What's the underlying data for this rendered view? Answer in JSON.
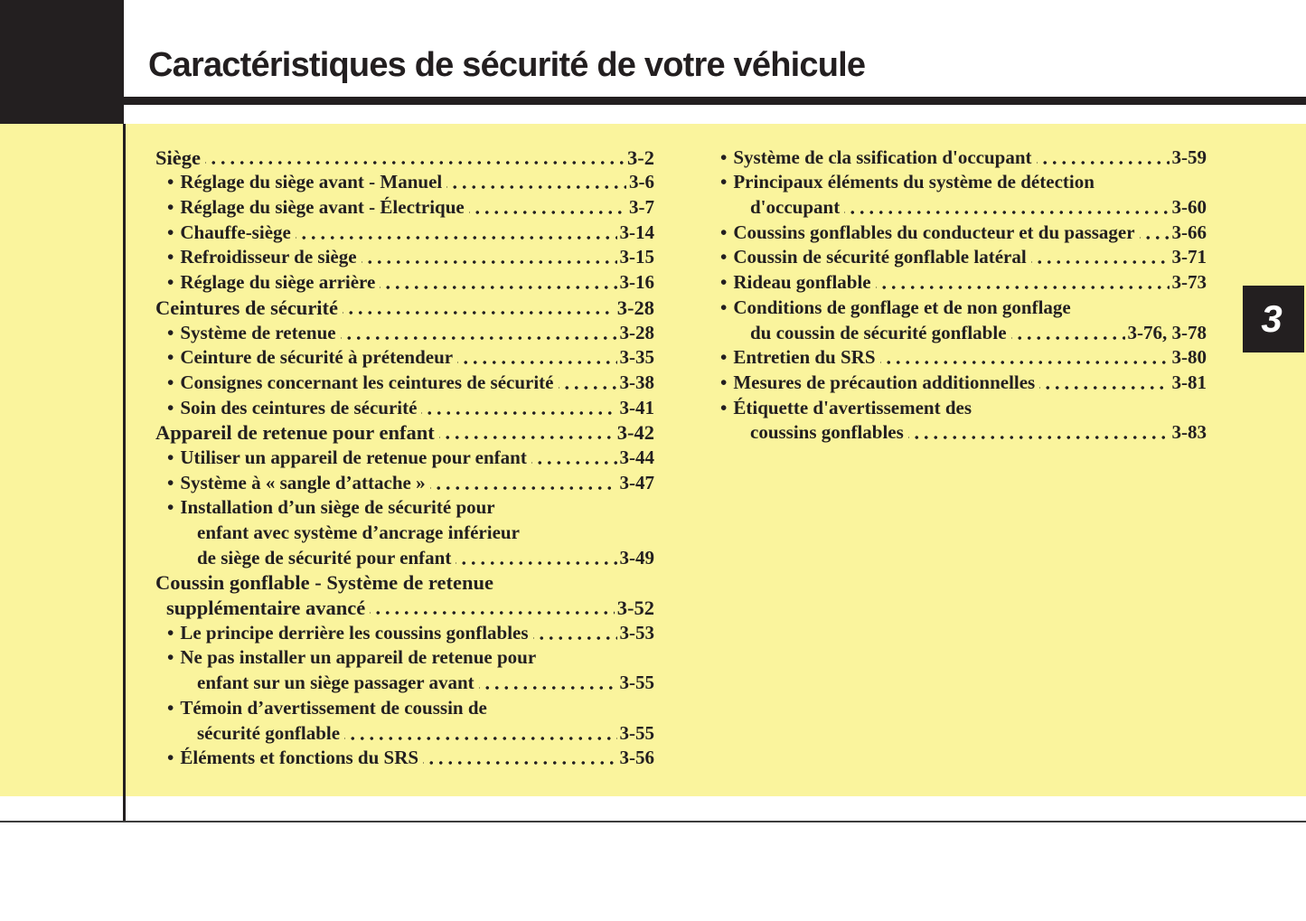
{
  "page": {
    "title": "Caractéristiques de sécurité de votre véhicule",
    "chapter_tab": "3"
  },
  "colors": {
    "highlight_yellow": "#faf49d",
    "print_black": "#231f20",
    "rule_gray": "#3d3d3d",
    "tab_text_white": "#ffffff"
  },
  "toc": {
    "bullet_glyph": "•",
    "left": [
      {
        "t": "Siège",
        "p": "3-2",
        "s": "h"
      },
      {
        "t": "Réglage du siège avant - Manuel",
        "p": "3-6",
        "s": "b"
      },
      {
        "t": "Réglage du siège avant - Électrique",
        "p": "3-7",
        "s": "b"
      },
      {
        "t": "Chauffe-siège",
        "p": "3-14",
        "s": "b"
      },
      {
        "t": "Refroidisseur de siège",
        "p": "3-15",
        "s": "b"
      },
      {
        "t": "Réglage du siège arrière",
        "p": "3-16",
        "s": "b"
      },
      {
        "t": "Ceintures de sécurité",
        "p": "3-28",
        "s": "h"
      },
      {
        "t": "Système de retenue",
        "p": "3-28",
        "s": "b"
      },
      {
        "t": "Ceinture de sécurité à prétendeur",
        "p": "3-35",
        "s": "b"
      },
      {
        "t": "Consignes concernant les ceintures de sécurité",
        "p": "3-38",
        "s": "b"
      },
      {
        "t": "Soin des ceintures de sécurité",
        "p": "3-41",
        "s": "b"
      },
      {
        "t": "Appareil de retenue pour enfant",
        "p": "3-42",
        "s": "h"
      },
      {
        "t": "Utiliser un appareil de retenue pour enfant",
        "p": "3-44",
        "s": "b"
      },
      {
        "t": "Système à « sangle d’attache »",
        "p": "3-47",
        "s": "b"
      },
      {
        "t": "Installation d’un siège de sécurité pour",
        "p": null,
        "s": "b"
      },
      {
        "t": "enfant avec système d’ancrage inférieur",
        "p": null,
        "s": "c"
      },
      {
        "t": "de siège de sécurité pour enfant",
        "p": "3-49",
        "s": "c"
      },
      {
        "t": "Coussin gonflable - Système de retenue",
        "p": null,
        "s": "h"
      },
      {
        "t": "supplémentaire avancé",
        "p": "3-52",
        "s": "hc"
      },
      {
        "t": "Le principe derrière les coussins gonflables",
        "p": "3-53",
        "s": "b"
      },
      {
        "t": "Ne pas installer un appareil de retenue pour",
        "p": null,
        "s": "b"
      },
      {
        "t": "enfant sur un siège passager avant",
        "p": "3-55",
        "s": "c"
      },
      {
        "t": "Témoin d’avertissement de coussin de",
        "p": null,
        "s": "b"
      },
      {
        "t": "sécurité gonflable",
        "p": "3-55",
        "s": "c"
      },
      {
        "t": "Éléments et fonctions du SRS",
        "p": "3-56",
        "s": "b"
      }
    ],
    "right": [
      {
        "t": "Système de cla ssification d'occupant",
        "p": "3-59",
        "s": "b"
      },
      {
        "t": "Principaux éléments du système de détection",
        "p": null,
        "s": "b"
      },
      {
        "t": "d'occupant",
        "p": "3-60",
        "s": "c"
      },
      {
        "t": "Coussins gonflables du conducteur et du passager",
        "p": "3-66",
        "s": "b"
      },
      {
        "t": "Coussin de sécurité gonflable latéral",
        "p": "3-71",
        "s": "b"
      },
      {
        "t": "Rideau gonflable",
        "p": "3-73",
        "s": "b"
      },
      {
        "t": "Conditions de gonflage et de non gonflage",
        "p": null,
        "s": "b"
      },
      {
        "t": "du coussin de sécurité gonflable",
        "p": "3-76, 3-78",
        "s": "c"
      },
      {
        "t": "Entretien du SRS",
        "p": "3-80",
        "s": "b"
      },
      {
        "t": "Mesures de précaution additionnelles",
        "p": "3-81",
        "s": "b"
      },
      {
        "t": "Étiquette d'avertissement des",
        "p": null,
        "s": "b"
      },
      {
        "t": "coussins gonflables",
        "p": "3-83",
        "s": "c"
      }
    ]
  }
}
